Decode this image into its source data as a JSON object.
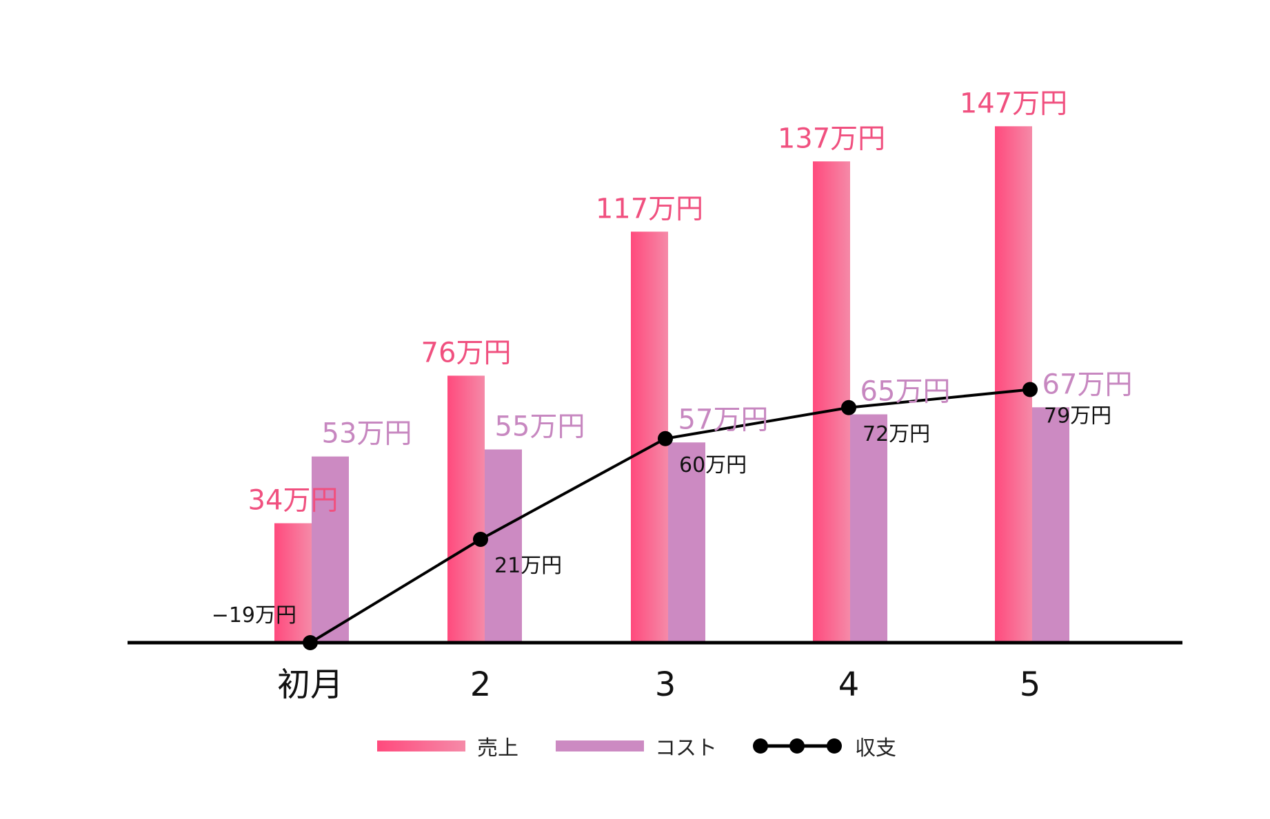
{
  "chart_data": {
    "type": "bar",
    "categories": [
      "初月",
      "2",
      "3",
      "4",
      "5"
    ],
    "series": [
      {
        "name": "売上",
        "kind": "bar",
        "values": [
          34,
          76,
          117,
          137,
          147
        ],
        "labels": [
          "34万円",
          "76万円",
          "117万円",
          "137万円",
          "147万円"
        ]
      },
      {
        "name": "コスト",
        "kind": "bar",
        "values": [
          53,
          55,
          57,
          65,
          67
        ],
        "labels": [
          "53万円",
          "55万円",
          "57万円",
          "65万円",
          "67万円"
        ]
      },
      {
        "name": "収支",
        "kind": "line",
        "values": [
          -19,
          21,
          60,
          72,
          79
        ],
        "labels": [
          "−19万円",
          "21万円",
          "60万円",
          "72万円",
          "79万円"
        ]
      }
    ],
    "ylim": [
      -19,
      147
    ],
    "grid": false,
    "legend_position": "bottom"
  },
  "colors": {
    "sales_start": "#ff4a7d",
    "sales_end": "#f58aa8",
    "cost": "#cc8ac2",
    "net": "#000000",
    "sales_text": "#f0507f",
    "cost_text": "#c787c0",
    "axis": "#000000"
  }
}
